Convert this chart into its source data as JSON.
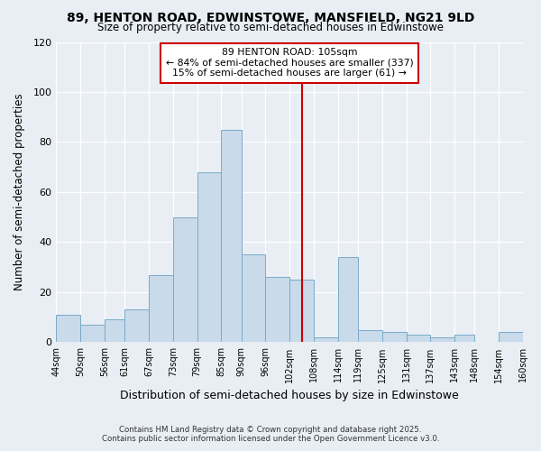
{
  "title": "89, HENTON ROAD, EDWINSTOWE, MANSFIELD, NG21 9LD",
  "subtitle": "Size of property relative to semi-detached houses in Edwinstowe",
  "xlabel": "Distribution of semi-detached houses by size in Edwinstowe",
  "ylabel": "Number of semi-detached properties",
  "bins": [
    44,
    50,
    56,
    61,
    67,
    73,
    79,
    85,
    90,
    96,
    102,
    108,
    114,
    119,
    125,
    131,
    137,
    143,
    148,
    154,
    160
  ],
  "counts": [
    11,
    7,
    9,
    13,
    27,
    50,
    68,
    85,
    35,
    26,
    25,
    2,
    34,
    5,
    4,
    3,
    2,
    3,
    0,
    4
  ],
  "bar_color": "#c9daea",
  "bar_edge_color": "#7aaac8",
  "vline_x": 105,
  "vline_color": "#cc0000",
  "annotation_title": "89 HENTON ROAD: 105sqm",
  "annotation_line1": "← 84% of semi-detached houses are smaller (337)",
  "annotation_line2": "15% of semi-detached houses are larger (61) →",
  "annotation_box_color": "#cc0000",
  "annotation_box_fill": "#ffffff",
  "ylim": [
    0,
    120
  ],
  "yticks": [
    0,
    20,
    40,
    60,
    80,
    100,
    120
  ],
  "tick_labels": [
    "44sqm",
    "50sqm",
    "56sqm",
    "61sqm",
    "67sqm",
    "73sqm",
    "79sqm",
    "85sqm",
    "90sqm",
    "96sqm",
    "102sqm",
    "108sqm",
    "114sqm",
    "119sqm",
    "125sqm",
    "131sqm",
    "137sqm",
    "143sqm",
    "148sqm",
    "154sqm",
    "160sqm"
  ],
  "bg_color": "#e8eef4",
  "plot_bg_color": "#e8eef4",
  "grid_color": "#ffffff",
  "footer1": "Contains HM Land Registry data © Crown copyright and database right 2025.",
  "footer2": "Contains public sector information licensed under the Open Government Licence v3.0."
}
